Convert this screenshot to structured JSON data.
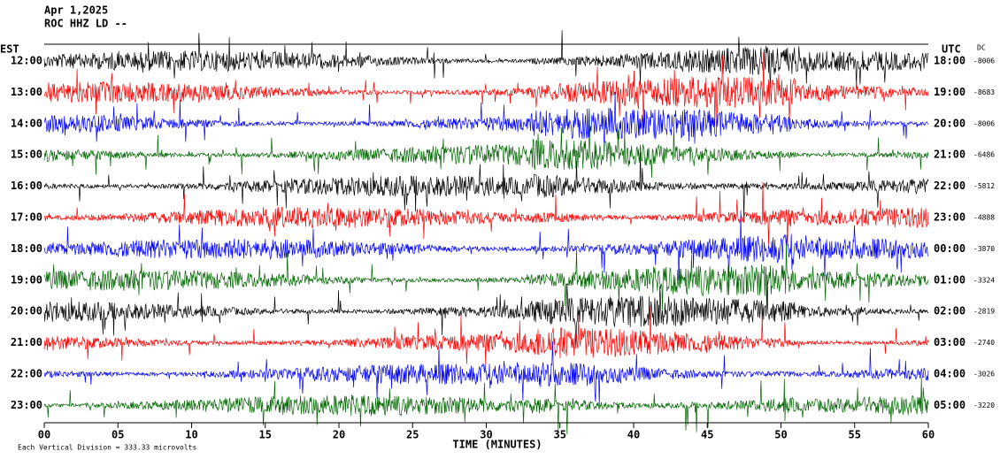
{
  "chart_data": {
    "type": "helicorder",
    "title": "Apr 1,2025",
    "subtitle": "ROC HHZ LD --",
    "left_axis_label": "EST",
    "right_axis_label": "UTC",
    "dc_label": "DC",
    "xlabel": "TIME (MINUTES)",
    "footnote": "Each Vertical Division =  333.33 microvolts",
    "xlim": [
      0,
      60
    ],
    "xticks": [
      {
        "value": 0,
        "label": "00"
      },
      {
        "value": 5,
        "label": "05"
      },
      10,
      15,
      20,
      25,
      30,
      35,
      40,
      45,
      50,
      55,
      60
    ],
    "left_times": [
      "12:00",
      "13:00",
      "14:00",
      "15:00",
      "16:00",
      "17:00",
      "18:00",
      "19:00",
      "20:00",
      "21:00",
      "22:00",
      "23:00"
    ],
    "right_times": [
      "18:00",
      "19:00",
      "20:00",
      "21:00",
      "22:00",
      "23:00",
      "00:00",
      "01:00",
      "02:00",
      "03:00",
      "04:00",
      "05:00"
    ],
    "dc_values": [
      -8006,
      -8683,
      -8006,
      -6486,
      -5812,
      -4888,
      -3870,
      -3324,
      -2819,
      -2740,
      -3026,
      -3220
    ],
    "trace_colors": [
      "#000000",
      "#ff0000",
      "#0000ff",
      "#006600"
    ]
  }
}
